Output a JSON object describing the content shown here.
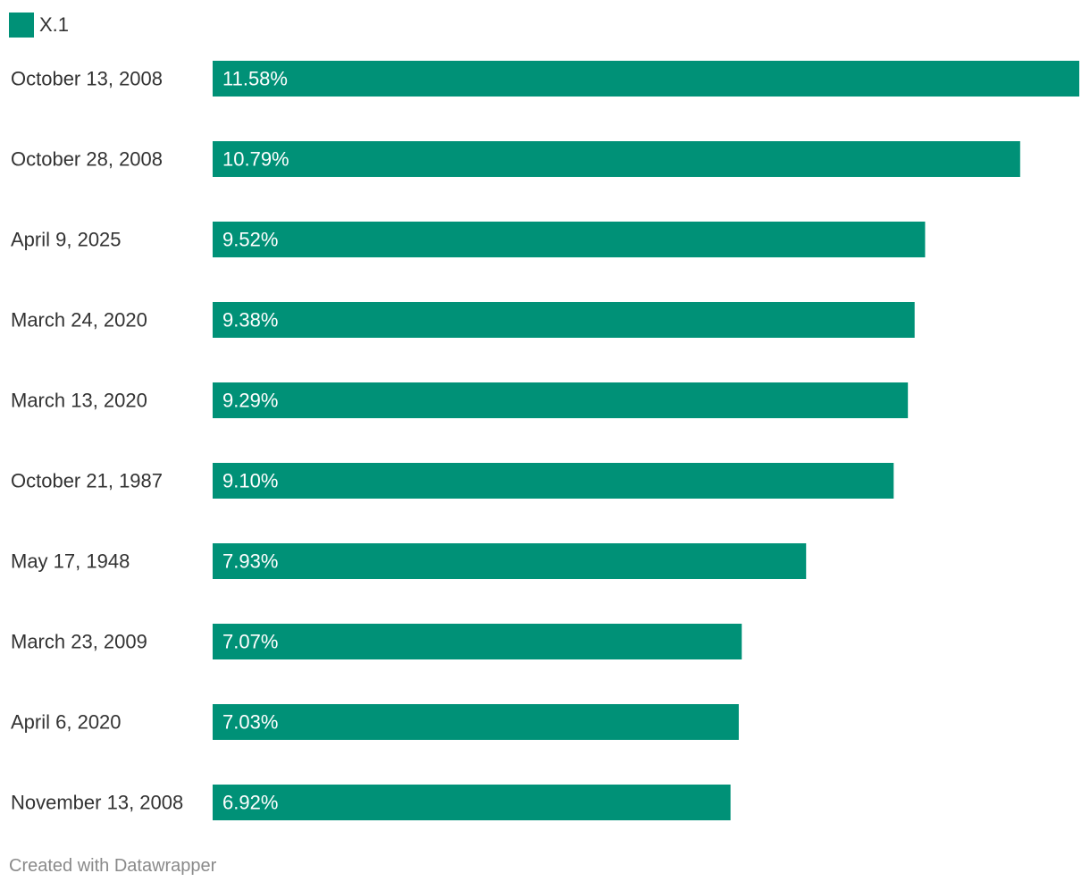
{
  "legend": {
    "label": "X.1"
  },
  "colors": {
    "bar": "#009177",
    "label": "#333333",
    "value_label": "#ffffff",
    "footer": "#8a8a8a"
  },
  "footer": {
    "text": "Created with Datawrapper"
  },
  "chart_data": {
    "type": "bar",
    "orientation": "horizontal",
    "categories": [
      "October 13, 2008",
      "October 28, 2008",
      "April 9, 2025",
      "March 24, 2020",
      "March 13, 2020",
      "October 21, 1987",
      "May 17, 1948",
      "March 23, 2009",
      "April 6, 2020",
      "November 13, 2008"
    ],
    "series": [
      {
        "name": "X.1",
        "values": [
          11.58,
          10.79,
          9.52,
          9.38,
          9.29,
          9.1,
          7.93,
          7.07,
          7.03,
          6.92
        ],
        "value_labels": [
          "11.58%",
          "10.79%",
          "9.52%",
          "9.38%",
          "9.29%",
          "9.10%",
          "7.93%",
          "7.07%",
          "7.03%",
          "6.92%"
        ]
      }
    ],
    "xlim": [
      0,
      11.58
    ],
    "grid": false,
    "legend_position": "top-left",
    "data_labels": "inside-start"
  }
}
